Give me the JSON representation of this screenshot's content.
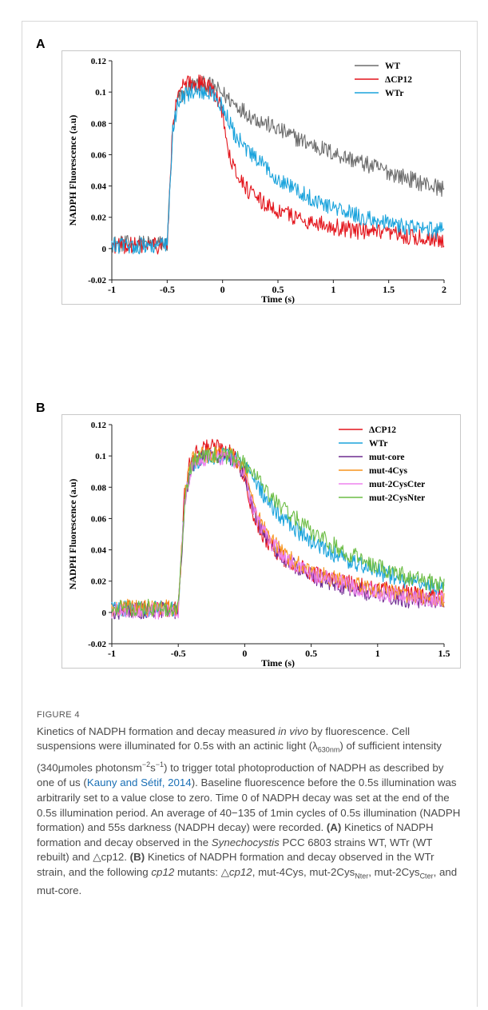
{
  "panel_a_letter": "A",
  "panel_b_letter": "B",
  "caption": {
    "figure_label": "FIGURE 4",
    "t01": "Kinetics of NADPH formation and decay measured ",
    "t02": "in vivo",
    "t03": " by fluorescence. Cell suspensions were illuminated for 0.5s with an actinic light (λ",
    "t04": "630nm",
    "t05": ") of sufficient intensity (340μmoles photonsm",
    "t06": "−2",
    "t07": "s",
    "t08": "−1",
    "t09": ") to trigger total photoproduction of NADPH as described by one of us (",
    "t10": "Kauny and Sétif, 2014",
    "t11": "). Baseline fluorescence before the 0.5s illumination was arbitrarily set to a value close to zero. Time 0 of NADPH decay was set at the end of the 0.5s illumination period. An average of 40−135 of 1min cycles of 0.5s illumination (NADPH formation) and 55s darkness (NADPH decay) were recorded. ",
    "t12": "(A)",
    "t13": " Kinetics of NADPH formation and decay observed in the ",
    "t14": "Synechocystis",
    "t15": " PCC 6803 strains WT, WTr (WT rebuilt) and △cp12. ",
    "t16": "(B)",
    "t17": " Kinetics of NADPH formation and decay observed in the WTr strain, and the following ",
    "t18": "cp12",
    "t19": " mutants: △",
    "t20": "cp12",
    "t21": ", mut-4Cys, mut-2Cys",
    "t22": "Nter",
    "t23": ", mut-2Cys",
    "t24": "Cter",
    "t25": ", and mut-core."
  },
  "chart_data": [
    {
      "type": "line",
      "panel": "A",
      "xlabel": "Time (s)",
      "ylabel": "NADPH Fluorescence (a.u)",
      "xlim": [
        -1,
        2
      ],
      "ylim": [
        -0.02,
        0.12
      ],
      "xticks": [
        "-1",
        "-0.5",
        "0",
        "0.5",
        "1",
        "1.5",
        "2"
      ],
      "yticks": [
        "-0.02",
        "0",
        "0.02",
        "0.04",
        "0.06",
        "0.08",
        "0.1",
        "0.12"
      ],
      "legend_position": "top-right",
      "grid": false,
      "series": [
        {
          "name": "WT",
          "color": "#6d6d6d",
          "x": [
            -1,
            -0.6,
            -0.5,
            -0.45,
            -0.4,
            -0.3,
            -0.2,
            -0.1,
            0,
            0.1,
            0.25,
            0.5,
            0.75,
            1,
            1.25,
            1.5,
            1.75,
            2
          ],
          "y": [
            0.003,
            0.003,
            0.003,
            0.075,
            0.095,
            0.104,
            0.105,
            0.104,
            0.099,
            0.093,
            0.085,
            0.076,
            0.068,
            0.061,
            0.055,
            0.049,
            0.043,
            0.038
          ]
        },
        {
          "name": "ΔCP12",
          "color": "#e3141b",
          "x": [
            -1,
            -0.6,
            -0.5,
            -0.45,
            -0.4,
            -0.3,
            -0.2,
            -0.1,
            0,
            0.05,
            0.1,
            0.2,
            0.3,
            0.5,
            0.75,
            1,
            1.25,
            1.5,
            1.75,
            2
          ],
          "y": [
            0.002,
            0.002,
            0.002,
            0.078,
            0.101,
            0.106,
            0.106,
            0.102,
            0.088,
            0.065,
            0.052,
            0.04,
            0.032,
            0.024,
            0.018,
            0.014,
            0.011,
            0.009,
            0.007,
            0.006
          ]
        },
        {
          "name": "WTr",
          "color": "#1aa3dc",
          "x": [
            -1,
            -0.6,
            -0.5,
            -0.45,
            -0.4,
            -0.3,
            -0.2,
            -0.1,
            0,
            0.1,
            0.2,
            0.3,
            0.5,
            0.75,
            1,
            1.25,
            1.5,
            1.75,
            2
          ],
          "y": [
            0.002,
            0.002,
            0.002,
            0.074,
            0.095,
            0.1,
            0.1,
            0.099,
            0.091,
            0.074,
            0.064,
            0.057,
            0.045,
            0.034,
            0.026,
            0.02,
            0.016,
            0.013,
            0.011
          ]
        }
      ]
    },
    {
      "type": "line",
      "panel": "B",
      "xlabel": "Time (s)",
      "ylabel": "NADPH Fluorescence (a.u)",
      "xlim": [
        -1,
        1.5
      ],
      "ylim": [
        -0.02,
        0.12
      ],
      "xticks": [
        "-1",
        "-0.5",
        "0",
        "0.5",
        "1",
        "1.5"
      ],
      "yticks": [
        "-0.02",
        "0",
        "0.02",
        "0.04",
        "0.06",
        "0.08",
        "0.1",
        "0.12"
      ],
      "legend_position": "top-right",
      "grid": false,
      "series": [
        {
          "name": "ΔCP12",
          "color": "#e3141b",
          "x": [
            -1,
            -0.6,
            -0.5,
            -0.45,
            -0.4,
            -0.3,
            -0.2,
            -0.1,
            0,
            0.05,
            0.1,
            0.2,
            0.3,
            0.5,
            0.75,
            1,
            1.25,
            1.5
          ],
          "y": [
            0.002,
            0.002,
            0.002,
            0.078,
            0.101,
            0.106,
            0.106,
            0.102,
            0.088,
            0.068,
            0.055,
            0.042,
            0.034,
            0.025,
            0.019,
            0.015,
            0.012,
            0.01
          ]
        },
        {
          "name": "WTr",
          "color": "#1aa3dc",
          "x": [
            -1,
            -0.6,
            -0.5,
            -0.45,
            -0.4,
            -0.3,
            -0.2,
            -0.1,
            0,
            0.1,
            0.2,
            0.3,
            0.5,
            0.75,
            1,
            1.25,
            1.5
          ],
          "y": [
            0.002,
            0.002,
            0.002,
            0.074,
            0.095,
            0.1,
            0.1,
            0.099,
            0.093,
            0.081,
            0.068,
            0.059,
            0.045,
            0.034,
            0.026,
            0.02,
            0.015
          ]
        },
        {
          "name": "mut-core",
          "color": "#6f2c91",
          "x": [
            -1,
            -0.6,
            -0.5,
            -0.45,
            -0.4,
            -0.3,
            -0.2,
            -0.1,
            0,
            0.05,
            0.1,
            0.2,
            0.3,
            0.5,
            0.75,
            1,
            1.25,
            1.5
          ],
          "y": [
            0.001,
            0.001,
            0.001,
            0.074,
            0.094,
            0.099,
            0.1,
            0.099,
            0.089,
            0.072,
            0.058,
            0.043,
            0.034,
            0.023,
            0.016,
            0.011,
            0.008,
            0.006
          ]
        },
        {
          "name": "mut-4Cys",
          "color": "#f7941d",
          "x": [
            -1,
            -0.6,
            -0.5,
            -0.45,
            -0.4,
            -0.3,
            -0.2,
            -0.1,
            0,
            0.05,
            0.1,
            0.2,
            0.3,
            0.5,
            0.75,
            1,
            1.25,
            1.5
          ],
          "y": [
            0.003,
            0.003,
            0.003,
            0.076,
            0.097,
            0.101,
            0.101,
            0.1,
            0.09,
            0.074,
            0.061,
            0.046,
            0.037,
            0.026,
            0.019,
            0.014,
            0.011,
            0.009
          ]
        },
        {
          "name": "mut-2CysCter",
          "color": "#ee82ee",
          "x": [
            -1,
            -0.6,
            -0.5,
            -0.45,
            -0.4,
            -0.3,
            -0.2,
            -0.1,
            0,
            0.05,
            0.1,
            0.2,
            0.3,
            0.5,
            0.75,
            1,
            1.25,
            1.5
          ],
          "y": [
            0.001,
            0.001,
            0.001,
            0.073,
            0.094,
            0.099,
            0.1,
            0.098,
            0.088,
            0.071,
            0.059,
            0.045,
            0.035,
            0.025,
            0.018,
            0.013,
            0.01,
            0.008
          ]
        },
        {
          "name": "mut-2CysNter",
          "color": "#6cbd45",
          "x": [
            -1,
            -0.6,
            -0.5,
            -0.45,
            -0.4,
            -0.3,
            -0.2,
            -0.1,
            0,
            0.1,
            0.2,
            0.3,
            0.5,
            0.75,
            1,
            1.25,
            1.5
          ],
          "y": [
            0.003,
            0.003,
            0.003,
            0.075,
            0.096,
            0.1,
            0.101,
            0.1,
            0.095,
            0.086,
            0.074,
            0.066,
            0.052,
            0.039,
            0.029,
            0.022,
            0.017
          ]
        }
      ]
    }
  ]
}
